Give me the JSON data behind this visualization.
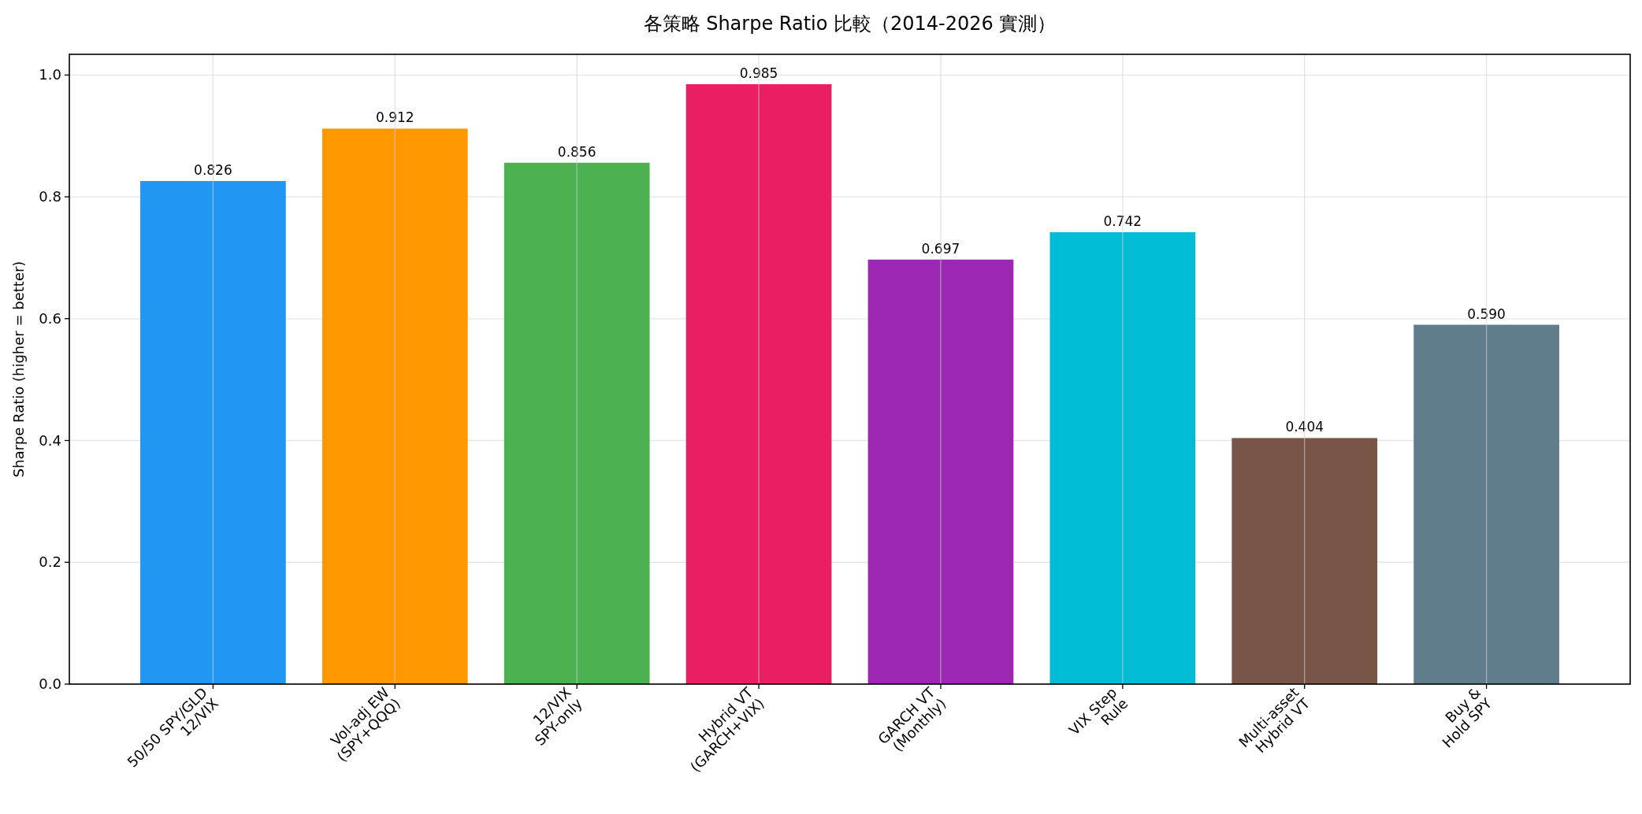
{
  "chart_data": {
    "type": "bar",
    "title": "各策略 Sharpe Ratio 比較（2014-2026 實測）",
    "ylabel": "Sharpe Ratio (higher = better)",
    "categories": [
      "50/50 SPY/GLD\n12/VIX",
      "Vol-adj EW\n(SPY+QQQ)",
      "12/VIX\nSPY-only",
      "Hybrid VT\n(GARCH+VIX)",
      "GARCH VT\n(Monthly)",
      "VIX Step\nRule",
      "Multi-asset\nHybrid VT",
      "Buy &\nHold SPY"
    ],
    "values": [
      0.826,
      0.912,
      0.856,
      0.985,
      0.697,
      0.742,
      0.404,
      0.59
    ],
    "value_labels": [
      "0.826",
      "0.912",
      "0.856",
      "0.985",
      "0.697",
      "0.742",
      "0.404",
      "0.590"
    ],
    "colors": [
      "#2196f3",
      "#ff9800",
      "#4caf50",
      "#e91e63",
      "#9c27b0",
      "#00bcd4",
      "#795548",
      "#607d8b"
    ],
    "ylim": [
      0,
      1.034
    ],
    "yticks": [
      {
        "value": 0,
        "label": "0.0"
      },
      {
        "value": 0.2,
        "label": "0.2"
      },
      {
        "value": 0.4,
        "label": "0.4"
      },
      {
        "value": 0.6,
        "label": "0.6"
      },
      {
        "value": 0.8,
        "label": "0.8"
      },
      {
        "value": 1,
        "label": "1.0"
      }
    ],
    "grid": true
  }
}
